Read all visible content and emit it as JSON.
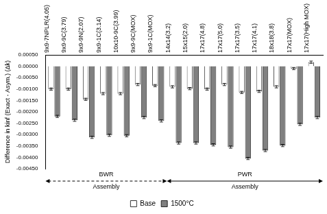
{
  "chart_data": {
    "type": "bar",
    "y_label": "Difference in kinf (Exact - Asym.) (Δk)",
    "categories": [
      "9x9-7NPLR(4.05)",
      "9x9-9C(3.79)",
      "9x9-9N(2.07)",
      "9x9-1C(3.14)",
      "10x10-9C(3.99)",
      "9x9-9C(MOX)",
      "9x9-1C(MOX)",
      "14x14(3.2)",
      "15x15(2.0)",
      "17x17(4.8)",
      "17x17(5.0)",
      "17x17(3.5)",
      "17x17(4.1)",
      "18x18(3.8)",
      "17x17(MOX)",
      "17x17(High MOX)"
    ],
    "series": [
      {
        "name": "Base",
        "color": "#ffffff",
        "values": [
          -0.001,
          -0.001,
          -0.00145,
          -0.0012,
          -0.0012,
          -0.0008,
          -0.00085,
          -0.0009,
          -0.00098,
          -0.001,
          -0.0008,
          -0.00115,
          -0.0011,
          -0.0009,
          -0.0001,
          0.00018
        ],
        "errors": [
          5e-05,
          5e-05,
          5e-05,
          5e-05,
          5e-05,
          5e-05,
          5e-05,
          5e-05,
          5e-05,
          5e-05,
          5e-05,
          5e-05,
          5e-05,
          5e-05,
          5e-05,
          5e-05
        ]
      },
      {
        "name": "1500°C",
        "color": "#808080",
        "values": [
          -0.0022,
          -0.00237,
          -0.00312,
          -0.00303,
          -0.00305,
          -0.00225,
          -0.0024,
          -0.00337,
          -0.00337,
          -0.00345,
          -0.00355,
          -0.00405,
          -0.0037,
          -0.00348,
          -0.00255,
          -0.00225
        ],
        "errors": [
          5e-05,
          5e-05,
          5e-05,
          5e-05,
          5e-05,
          5e-05,
          5e-05,
          5e-05,
          5e-05,
          5e-05,
          5e-05,
          5e-05,
          5e-05,
          5e-05,
          5e-05,
          5e-05
        ]
      }
    ],
    "ylim": [
      -0.0045,
      0.0005
    ],
    "yticks": [
      {
        "value": 0.0005,
        "label": "0.00050"
      },
      {
        "value": 0,
        "label": "0.00000"
      },
      {
        "value": -0.0005,
        "label": "-0.00050"
      },
      {
        "value": -0.001,
        "label": "-0.00100"
      },
      {
        "value": -0.0015,
        "label": "-0.00150"
      },
      {
        "value": -0.002,
        "label": "-0.00200"
      },
      {
        "value": -0.0025,
        "label": "-0.00250"
      },
      {
        "value": -0.003,
        "label": "-0.00300"
      },
      {
        "value": -0.0035,
        "label": "-0.00350"
      },
      {
        "value": -0.004,
        "label": "-0.00400"
      },
      {
        "value": -0.0045,
        "label": "-0.00450"
      }
    ],
    "grid": false,
    "legend": "bottom",
    "annotations": [
      {
        "text": "BWR Assembly",
        "start": "9x9-7NPLR(4.05)",
        "end": "9x9-1C(MOX)",
        "line_style": "dashed"
      },
      {
        "text": "PWR Assembly",
        "start": "14x14(3.2)",
        "end": "17x17(High MOX)",
        "line_style": "solid"
      }
    ]
  }
}
